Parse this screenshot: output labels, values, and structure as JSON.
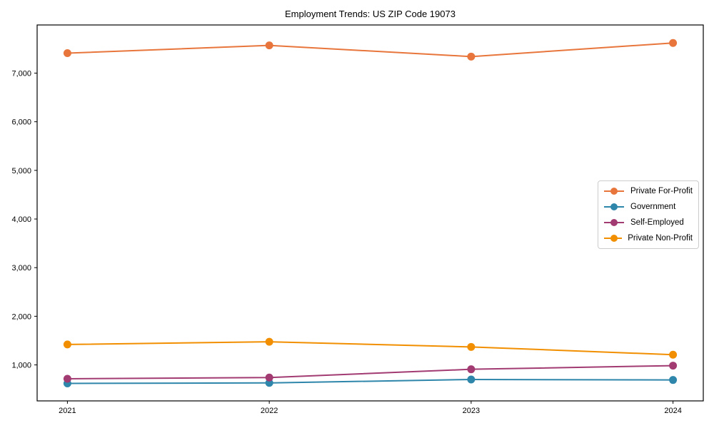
{
  "title": "Employment Trends: US ZIP Code 19073",
  "chart_data": {
    "type": "line",
    "title": "Employment Trends: US ZIP Code 19073",
    "x": [
      2021,
      2022,
      2023,
      2024
    ],
    "x_tick_labels": [
      "2021",
      "2022",
      "2023",
      "2024"
    ],
    "y_ticks": [
      1000,
      2000,
      3000,
      4000,
      5000,
      6000,
      7000
    ],
    "y_tick_labels": [
      "1,000",
      "2,000",
      "3,000",
      "4,000",
      "5,000",
      "6,000",
      "7,000"
    ],
    "xlim": [
      2020.85,
      2024.15
    ],
    "ylim": [
      260,
      7990
    ],
    "grid": false,
    "legend_position": "center right",
    "background_color": "#ffffff",
    "spine_color": "#000000",
    "series": [
      {
        "name": "Private For-Profit",
        "color": "#E8763C",
        "values": [
          7410,
          7570,
          7340,
          7620
        ]
      },
      {
        "name": "Government",
        "color": "#2E86AB",
        "values": [
          620,
          630,
          700,
          690
        ]
      },
      {
        "name": "Self-Employed",
        "color": "#A23B72",
        "values": [
          715,
          740,
          910,
          985
        ]
      },
      {
        "name": "Private Non-Profit",
        "color": "#F18F01",
        "values": [
          1420,
          1475,
          1370,
          1210
        ]
      }
    ]
  }
}
